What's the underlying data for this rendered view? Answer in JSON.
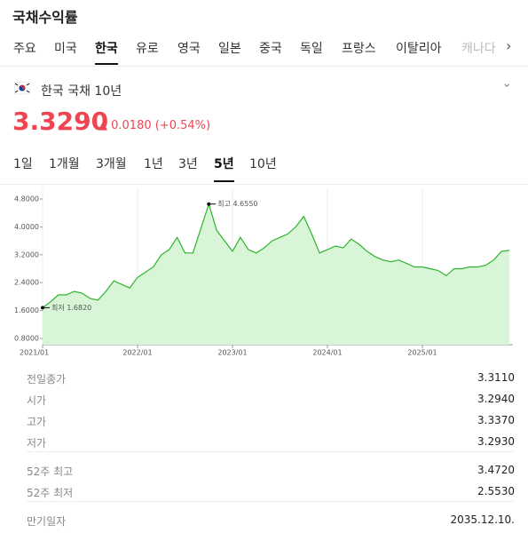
{
  "header": {
    "title": "국채수익률"
  },
  "tabs": [
    "주요",
    "미국",
    "한국",
    "유로",
    "영국",
    "일본",
    "중국",
    "독일",
    "프랑스",
    "이탈리아",
    "캐나다"
  ],
  "selected_tab": "한국",
  "instrument": {
    "name": "한국 국채 10년",
    "price": "3.3290",
    "change": "▲ 0.0180 (+0.54%)"
  },
  "periods": [
    "1일",
    "1개월",
    "3개월",
    "1년",
    "3년",
    "5년",
    "10년"
  ],
  "selected_period": "5년",
  "chart_data": {
    "type": "line",
    "x": [
      "2021/01",
      "2021/02",
      "2021/03",
      "2021/04",
      "2021/05",
      "2021/06",
      "2021/07",
      "2021/08",
      "2021/09",
      "2021/10",
      "2021/11",
      "2021/12",
      "2022/01",
      "2022/02",
      "2022/03",
      "2022/04",
      "2022/05",
      "2022/06",
      "2022/07",
      "2022/08",
      "2022/09",
      "2022/10",
      "2022/11",
      "2022/12",
      "2023/01",
      "2023/02",
      "2023/03",
      "2023/04",
      "2023/05",
      "2023/06",
      "2023/07",
      "2023/08",
      "2023/09",
      "2023/10",
      "2023/11",
      "2023/12",
      "2024/01",
      "2024/02",
      "2024/03",
      "2024/04",
      "2024/05",
      "2024/06",
      "2024/07",
      "2024/08",
      "2024/09",
      "2024/10",
      "2024/11",
      "2024/12",
      "2025/01",
      "2025/02",
      "2025/03",
      "2025/04",
      "2025/05",
      "2025/06",
      "2025/07",
      "2025/08",
      "2025/09",
      "2025/10",
      "2025/11",
      "2025/12"
    ],
    "series": [
      {
        "name": "한국 국채 10년",
        "color": "#2db52d",
        "values": [
          1.682,
          1.85,
          2.05,
          2.05,
          2.15,
          2.1,
          1.95,
          1.9,
          2.15,
          2.45,
          2.35,
          2.25,
          2.55,
          2.7,
          2.85,
          3.2,
          3.35,
          3.7,
          3.25,
          3.25,
          3.95,
          4.655,
          3.9,
          3.6,
          3.3,
          3.7,
          3.35,
          3.25,
          3.4,
          3.6,
          3.7,
          3.8,
          4.0,
          4.3,
          3.8,
          3.25,
          3.35,
          3.45,
          3.4,
          3.65,
          3.5,
          3.3,
          3.15,
          3.05,
          3.0,
          3.05,
          2.95,
          2.85,
          2.85,
          2.8,
          2.75,
          2.6,
          2.8,
          2.8,
          2.85,
          2.85,
          2.9,
          3.05,
          3.3,
          3.329
        ]
      }
    ],
    "ylim": [
      0.8,
      4.8
    ],
    "yticks": [
      {
        "value": 0.8,
        "label": "0.8000"
      },
      {
        "value": 1.6,
        "label": "1.6000"
      },
      {
        "value": 2.4,
        "label": "2.4000"
      },
      {
        "value": 3.2,
        "label": "3.2000"
      },
      {
        "value": 4.0,
        "label": "4.0000"
      },
      {
        "value": 4.8,
        "label": "4.8000"
      }
    ],
    "xticks": [
      "2021/01",
      "2022/01",
      "2023/01",
      "2024/01",
      "2025/01"
    ],
    "annotations": {
      "max": "최고 4.6550",
      "min": "최저 1.6820"
    }
  },
  "stats": [
    [
      [
        "전일종가",
        "3.3110"
      ],
      [
        "시가",
        "3.2940"
      ],
      [
        "고가",
        "3.3370"
      ],
      [
        "저가",
        "3.2930"
      ]
    ],
    [
      [
        "52주 최고",
        "3.4720"
      ],
      [
        "52주 최저",
        "2.5530"
      ]
    ],
    [
      [
        "만기일자",
        "2035.12.10."
      ]
    ]
  ]
}
